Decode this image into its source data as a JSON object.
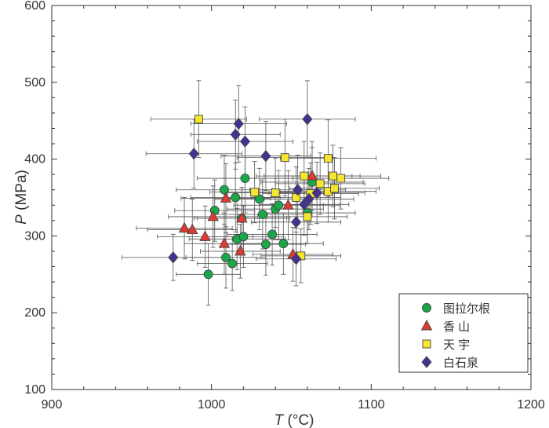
{
  "chart_data": {
    "type": "scatter",
    "xlabel_italic": "T",
    "xlabel_rest": " (°C)",
    "ylabel_italic": "P",
    "ylabel_rest": " (MPa)",
    "xlim": [
      900,
      1200
    ],
    "ylim": [
      100,
      600
    ],
    "xticks": [
      900,
      1000,
      1100,
      1200
    ],
    "yticks": [
      100,
      200,
      300,
      400,
      500,
      600
    ],
    "xticklabels": [
      "900",
      "1000",
      "1100",
      "1200"
    ],
    "yticklabels": [
      "100",
      "200",
      "300",
      "400",
      "500",
      "600"
    ],
    "legend_position": "bottom-right",
    "series": [
      {
        "name": "图拉尔根",
        "marker": "circle",
        "color": "#18a84a",
        "points": [
          {
            "x": 998,
            "y": 250,
            "xerr": 20,
            "yerr": 40
          },
          {
            "x": 1002,
            "y": 333,
            "xerr": 25,
            "yerr": 40
          },
          {
            "x": 1008,
            "y": 360,
            "xerr": 30,
            "yerr": 45
          },
          {
            "x": 1009,
            "y": 272,
            "xerr": 25,
            "yerr": 40
          },
          {
            "x": 1013,
            "y": 264,
            "xerr": 22,
            "yerr": 35
          },
          {
            "x": 1015,
            "y": 350,
            "xerr": 28,
            "yerr": 45
          },
          {
            "x": 1016,
            "y": 296,
            "xerr": 30,
            "yerr": 40
          },
          {
            "x": 1019,
            "y": 323,
            "xerr": 28,
            "yerr": 40
          },
          {
            "x": 1020,
            "y": 299,
            "xerr": 25,
            "yerr": 40
          },
          {
            "x": 1021,
            "y": 375,
            "xerr": 30,
            "yerr": 45
          },
          {
            "x": 1030,
            "y": 348,
            "xerr": 28,
            "yerr": 40
          },
          {
            "x": 1032,
            "y": 328,
            "xerr": 30,
            "yerr": 45
          },
          {
            "x": 1034,
            "y": 289,
            "xerr": 25,
            "yerr": 40
          },
          {
            "x": 1038,
            "y": 302,
            "xerr": 28,
            "yerr": 40
          },
          {
            "x": 1040,
            "y": 335,
            "xerr": 30,
            "yerr": 40
          },
          {
            "x": 1042,
            "y": 340,
            "xerr": 28,
            "yerr": 45
          },
          {
            "x": 1045,
            "y": 290,
            "xerr": 25,
            "yerr": 40
          },
          {
            "x": 1060,
            "y": 330,
            "xerr": 30,
            "yerr": 40
          },
          {
            "x": 1063,
            "y": 370,
            "xerr": 32,
            "yerr": 45
          }
        ]
      },
      {
        "name": "香  山",
        "marker": "triangle",
        "color": "#e03a31",
        "points": [
          {
            "x": 983,
            "y": 310,
            "xerr": 30,
            "yerr": 40
          },
          {
            "x": 988,
            "y": 308,
            "xerr": 28,
            "yerr": 40
          },
          {
            "x": 996,
            "y": 299,
            "xerr": 30,
            "yerr": 40
          },
          {
            "x": 1001,
            "y": 325,
            "xerr": 28,
            "yerr": 40
          },
          {
            "x": 1008,
            "y": 290,
            "xerr": 25,
            "yerr": 40
          },
          {
            "x": 1009,
            "y": 349,
            "xerr": 28,
            "yerr": 45
          },
          {
            "x": 1018,
            "y": 280,
            "xerr": 25,
            "yerr": 35
          },
          {
            "x": 1019,
            "y": 323,
            "xerr": 30,
            "yerr": 40
          },
          {
            "x": 1048,
            "y": 340,
            "xerr": 32,
            "yerr": 45
          },
          {
            "x": 1051,
            "y": 276,
            "xerr": 25,
            "yerr": 35
          },
          {
            "x": 1063,
            "y": 378,
            "xerr": 30,
            "yerr": 45
          }
        ]
      },
      {
        "name": "天  宇",
        "marker": "square",
        "color": "#f5e62f",
        "points": [
          {
            "x": 992,
            "y": 452,
            "xerr": 30,
            "yerr": 50
          },
          {
            "x": 1027,
            "y": 357,
            "xerr": 28,
            "yerr": 40
          },
          {
            "x": 1040,
            "y": 356,
            "xerr": 30,
            "yerr": 45
          },
          {
            "x": 1046,
            "y": 402,
            "xerr": 30,
            "yerr": 50
          },
          {
            "x": 1053,
            "y": 350,
            "xerr": 28,
            "yerr": 40
          },
          {
            "x": 1056,
            "y": 274,
            "xerr": 25,
            "yerr": 35
          },
          {
            "x": 1058,
            "y": 378,
            "xerr": 30,
            "yerr": 45
          },
          {
            "x": 1060,
            "y": 325,
            "xerr": 25,
            "yerr": 35
          },
          {
            "x": 1062,
            "y": 355,
            "xerr": 30,
            "yerr": 40
          },
          {
            "x": 1068,
            "y": 368,
            "xerr": 28,
            "yerr": 40
          },
          {
            "x": 1073,
            "y": 401,
            "xerr": 30,
            "yerr": 50
          },
          {
            "x": 1073,
            "y": 358,
            "xerr": 30,
            "yerr": 40
          },
          {
            "x": 1076,
            "y": 378,
            "xerr": 30,
            "yerr": 40
          },
          {
            "x": 1077,
            "y": 362,
            "xerr": 28,
            "yerr": 40
          },
          {
            "x": 1081,
            "y": 375,
            "xerr": 30,
            "yerr": 40
          }
        ]
      },
      {
        "name": "白石泉",
        "marker": "diamond",
        "color": "#463192",
        "points": [
          {
            "x": 976,
            "y": 272,
            "xerr": 32,
            "yerr": 30
          },
          {
            "x": 989,
            "y": 407,
            "xerr": 30,
            "yerr": 45
          },
          {
            "x": 1015,
            "y": 432,
            "xerr": 28,
            "yerr": 45
          },
          {
            "x": 1017,
            "y": 446,
            "xerr": 30,
            "yerr": 50
          },
          {
            "x": 1021,
            "y": 423,
            "xerr": 30,
            "yerr": 45
          },
          {
            "x": 1034,
            "y": 404,
            "xerr": 28,
            "yerr": 45
          },
          {
            "x": 1053,
            "y": 270,
            "xerr": 25,
            "yerr": 35
          },
          {
            "x": 1053,
            "y": 318,
            "xerr": 28,
            "yerr": 40
          },
          {
            "x": 1054,
            "y": 360,
            "xerr": 30,
            "yerr": 45
          },
          {
            "x": 1058,
            "y": 341,
            "xerr": 28,
            "yerr": 40
          },
          {
            "x": 1060,
            "y": 452,
            "xerr": 30,
            "yerr": 50
          },
          {
            "x": 1061,
            "y": 348,
            "xerr": 28,
            "yerr": 40
          },
          {
            "x": 1066,
            "y": 356,
            "xerr": 30,
            "yerr": 40
          }
        ]
      }
    ]
  }
}
